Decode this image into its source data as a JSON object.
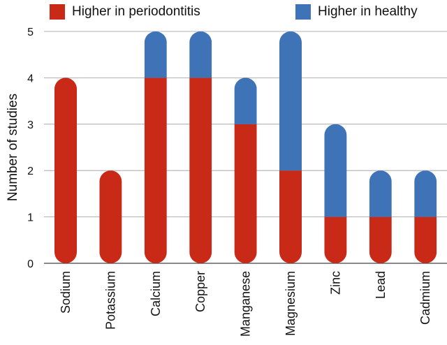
{
  "chart_data": {
    "type": "bar",
    "stacked": true,
    "categories": [
      "Sodium",
      "Potassium",
      "Calcium",
      "Copper",
      "Manganese",
      "Magnesium",
      "Zinc",
      "Lead",
      "Cadmium"
    ],
    "series": [
      {
        "name": "Higher in periodontitis",
        "color": "#c92a17",
        "values": [
          4,
          2,
          4,
          4,
          3,
          2,
          1,
          1,
          1
        ]
      },
      {
        "name": "Higher in healthy",
        "color": "#3f73b8",
        "values": [
          0,
          0,
          1,
          1,
          1,
          3,
          2,
          1,
          1
        ]
      }
    ],
    "ylabel": "Number of studies",
    "yticks": [
      "0",
      "1",
      "2",
      "3",
      "4",
      "5"
    ],
    "ylim": [
      0,
      5
    ],
    "grid": true,
    "legend_position": "top"
  }
}
